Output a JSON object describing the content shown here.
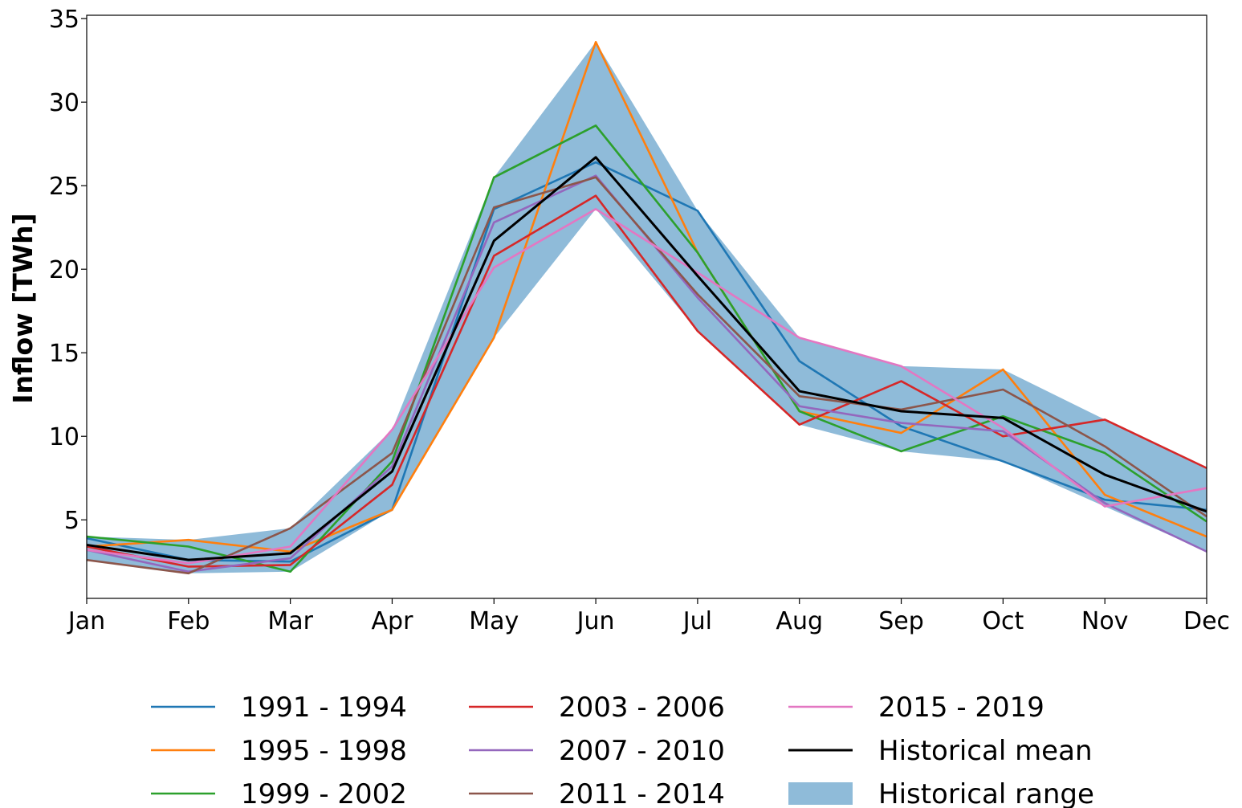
{
  "chart_data": {
    "type": "line",
    "title": "",
    "xlabel": "",
    "ylabel": "Inflow [TWh]",
    "categories": [
      "Jan",
      "Feb",
      "Mar",
      "Apr",
      "May",
      "Jun",
      "Jul",
      "Aug",
      "Sep",
      "Oct",
      "Nov",
      "Dec"
    ],
    "ylim": [
      0.3,
      35.2
    ],
    "yticks": [
      5,
      10,
      15,
      20,
      25,
      30,
      35
    ],
    "grid": false,
    "legend_position": "bottom",
    "series": [
      {
        "name": "1991 - 1994",
        "color": "#1f77b4",
        "values": [
          3.9,
          2.6,
          2.5,
          5.6,
          23.6,
          26.4,
          23.5,
          14.5,
          10.6,
          8.5,
          6.2,
          5.6
        ]
      },
      {
        "name": "1995 - 1998",
        "color": "#ff7f0e",
        "values": [
          3.4,
          3.8,
          3.1,
          5.6,
          15.9,
          33.6,
          21.0,
          11.5,
          10.2,
          14.0,
          6.5,
          4.0
        ]
      },
      {
        "name": "1999 - 2002",
        "color": "#2ca02c",
        "values": [
          4.0,
          3.4,
          1.9,
          8.5,
          25.5,
          28.6,
          21.0,
          11.5,
          9.1,
          11.2,
          9.0,
          4.9
        ]
      },
      {
        "name": "2003 - 2006",
        "color": "#d62728",
        "values": [
          3.4,
          2.2,
          2.3,
          7.1,
          20.8,
          24.4,
          16.3,
          10.7,
          13.3,
          10.0,
          11.0,
          8.1
        ]
      },
      {
        "name": "2007 - 2010",
        "color": "#9467bd",
        "values": [
          3.2,
          1.9,
          2.7,
          8.2,
          22.8,
          25.6,
          18.3,
          11.8,
          10.8,
          10.3,
          6.0,
          3.1
        ]
      },
      {
        "name": "2011 - 2014",
        "color": "#8c564b",
        "values": [
          2.6,
          1.8,
          4.5,
          9.0,
          23.7,
          25.5,
          18.5,
          12.4,
          11.6,
          12.8,
          9.4,
          5.2
        ]
      },
      {
        "name": "2015 - 2019",
        "color": "#e377c2",
        "values": [
          3.2,
          2.4,
          3.4,
          10.4,
          20.1,
          23.6,
          19.8,
          15.9,
          14.2,
          10.5,
          5.8,
          6.9
        ]
      },
      {
        "name": "Historical mean",
        "color": "#000000",
        "values": [
          3.5,
          2.6,
          3.0,
          7.9,
          21.7,
          26.7,
          19.6,
          12.7,
          11.5,
          11.1,
          7.7,
          5.5
        ]
      }
    ],
    "range": {
      "name": "Historical range",
      "color": "#1f77b4",
      "lower": [
        2.6,
        1.8,
        1.9,
        5.6,
        15.9,
        23.6,
        16.3,
        10.7,
        9.1,
        8.5,
        5.8,
        3.1
      ],
      "upper": [
        4.0,
        3.8,
        4.5,
        10.4,
        25.5,
        33.6,
        23.5,
        15.9,
        14.2,
        14.0,
        11.0,
        8.1
      ]
    }
  }
}
